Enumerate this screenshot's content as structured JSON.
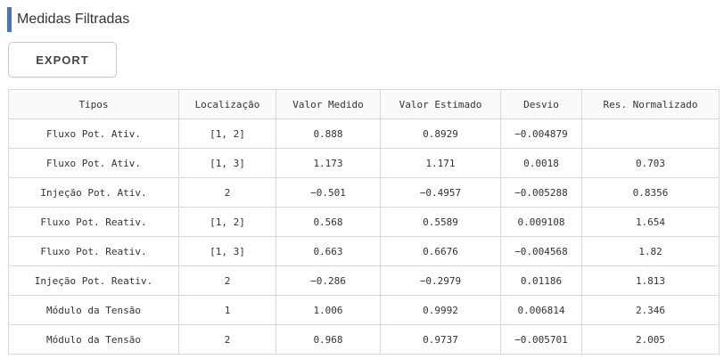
{
  "title": "Medidas Filtradas",
  "export_label": "EXPORT",
  "table": {
    "headers": [
      "Tipos",
      "Localização",
      "Valor Medido",
      "Valor Estimado",
      "Desvio",
      "Res. Normalizado"
    ],
    "rows": [
      [
        "Fluxo Pot. Ativ.",
        "[1, 2]",
        "0.888",
        "0.8929",
        "−0.004879",
        ""
      ],
      [
        "Fluxo Pot. Ativ.",
        "[1, 3]",
        "1.173",
        "1.171",
        "0.0018",
        "0.703"
      ],
      [
        "Injeção Pot. Ativ.",
        "2",
        "−0.501",
        "−0.4957",
        "−0.005288",
        "0.8356"
      ],
      [
        "Fluxo Pot. Reativ.",
        "[1, 2]",
        "0.568",
        "0.5589",
        "0.009108",
        "1.654"
      ],
      [
        "Fluxo Pot. Reativ.",
        "[1, 3]",
        "0.663",
        "0.6676",
        "−0.004568",
        "1.82"
      ],
      [
        "Injeção Pot. Reativ.",
        "2",
        "−0.286",
        "−0.2979",
        "0.01186",
        "1.813"
      ],
      [
        "Módulo da Tensão",
        "1",
        "1.006",
        "0.9992",
        "0.006814",
        "2.346"
      ],
      [
        "Módulo da Tensão",
        "2",
        "0.968",
        "0.9737",
        "−0.005701",
        "2.005"
      ]
    ]
  },
  "colors": {
    "accent": "#4a76b8",
    "border": "#d9d9d9",
    "header_bg": "#fafafa"
  }
}
